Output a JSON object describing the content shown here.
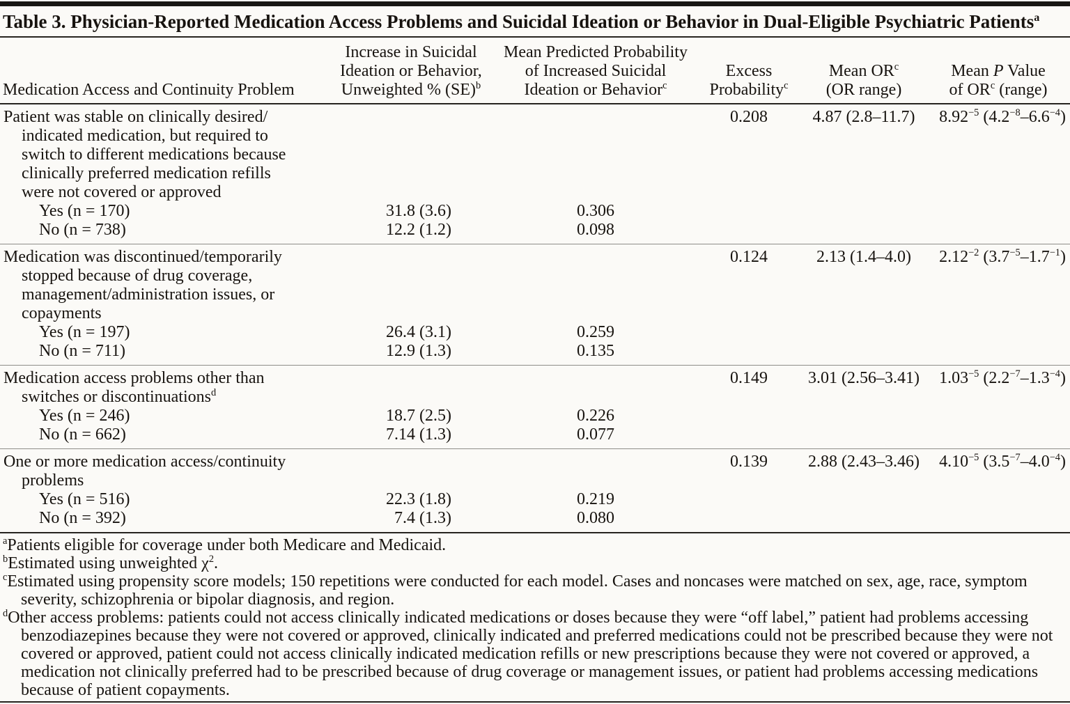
{
  "colors": {
    "background": "#fbfaf7",
    "text": "#17130f",
    "rule_heavy": "#181714",
    "rule_medium": "#26231f",
    "rule_separator": "#8e8c88"
  },
  "document": {
    "title": {
      "text": "Table 3. Physician-Reported Medication Access Problems and Suicidal Ideation or Behavior in Dual-Eligible Psychiatric Patients",
      "sup": "a"
    },
    "header": {
      "col1_parts": [
        {
          "t": "Medication Access and Continuity Problem"
        }
      ],
      "col2_parts": [
        {
          "t": "Increase in Suicidal"
        },
        {
          "br": true
        },
        {
          "t": "Ideation or Behavior,"
        },
        {
          "br": true
        },
        {
          "t": "Unweighted % (SE)"
        },
        {
          "sup": "b"
        }
      ],
      "col3_parts": [
        {
          "t": "Mean Predicted Probability"
        },
        {
          "br": true
        },
        {
          "t": "of Increased Suicidal"
        },
        {
          "br": true
        },
        {
          "t": "Ideation or Behavior"
        },
        {
          "sup": "c"
        }
      ],
      "col4_parts": [
        {
          "t": "Excess"
        },
        {
          "br": true
        },
        {
          "t": "Probability"
        },
        {
          "sup": "c"
        }
      ],
      "col5_parts": [
        {
          "t": "Mean OR"
        },
        {
          "sup": "c"
        },
        {
          "br": true
        },
        {
          "t": "(OR range)"
        }
      ],
      "col6_parts": [
        {
          "t": "Mean "
        },
        {
          "i": "P"
        },
        {
          "t": " Value"
        },
        {
          "br": true
        },
        {
          "t": "of OR"
        },
        {
          "sup": "c"
        },
        {
          "t": " (range)"
        }
      ]
    },
    "groups": [
      {
        "label_parts": [
          {
            "t": "Patient was stable on clinically desired/"
          },
          {
            "br": true
          },
          {
            "t": "indicated medication, but required to"
          },
          {
            "br": true
          },
          {
            "t": "switch to different medications because"
          },
          {
            "br": true
          },
          {
            "t": "clinically preferred medication refills"
          },
          {
            "br": true
          },
          {
            "t": "were not covered or approved"
          }
        ],
        "excess_probability": "0.208",
        "mean_or": "4.87 (2.8–11.7)",
        "mean_p_parts": [
          {
            "t": "8.92"
          },
          {
            "sup": "−5"
          },
          {
            "t": " (4.2"
          },
          {
            "sup": "−8"
          },
          {
            "t": "–6.6"
          },
          {
            "sup": "−4"
          },
          {
            "t": ")"
          }
        ],
        "rows": [
          {
            "label": "Yes (n = 170)",
            "increase_pct_se": "31.8 (3.6)",
            "mean_predicted_probability": "0.306"
          },
          {
            "label": "No (n = 738)",
            "increase_pct_se": "12.2 (1.2)",
            "mean_predicted_probability": "0.098"
          }
        ]
      },
      {
        "label_parts": [
          {
            "t": "Medication was discontinued/temporarily"
          },
          {
            "br": true
          },
          {
            "t": "stopped because of drug coverage,"
          },
          {
            "br": true
          },
          {
            "t": "management/administration issues, or"
          },
          {
            "br": true
          },
          {
            "t": "copayments"
          }
        ],
        "excess_probability": "0.124",
        "mean_or": "2.13 (1.4–4.0)",
        "mean_p_parts": [
          {
            "t": "2.12"
          },
          {
            "sup": "−2"
          },
          {
            "t": " (3.7"
          },
          {
            "sup": "−5"
          },
          {
            "t": "–1.7"
          },
          {
            "sup": "−1"
          },
          {
            "t": ")"
          }
        ],
        "rows": [
          {
            "label": "Yes (n = 197)",
            "increase_pct_se": "26.4 (3.1)",
            "mean_predicted_probability": "0.259"
          },
          {
            "label": "No (n = 711)",
            "increase_pct_se": "12.9 (1.3)",
            "mean_predicted_probability": "0.135"
          }
        ]
      },
      {
        "label_parts": [
          {
            "t": "Medication access problems other than"
          },
          {
            "br": true
          },
          {
            "t": "switches or discontinuations"
          },
          {
            "sup": "d"
          }
        ],
        "excess_probability": "0.149",
        "mean_or": "3.01 (2.56–3.41)",
        "mean_p_parts": [
          {
            "t": "1.03"
          },
          {
            "sup": "−5"
          },
          {
            "t": " (2.2"
          },
          {
            "sup": "−7"
          },
          {
            "t": "–1.3"
          },
          {
            "sup": "−4"
          },
          {
            "t": ")"
          }
        ],
        "rows": [
          {
            "label": "Yes (n = 246)",
            "increase_pct_se": "18.7 (2.5)",
            "mean_predicted_probability": "0.226"
          },
          {
            "label": "No (n = 662)",
            "increase_pct_se": "7.14 (1.3)",
            "mean_predicted_probability": "0.077"
          }
        ]
      },
      {
        "label_parts": [
          {
            "t": "One or more medication access/continuity"
          },
          {
            "br": true
          },
          {
            "t": "problems"
          }
        ],
        "excess_probability": "0.139",
        "mean_or": "2.88 (2.43–3.46)",
        "mean_p_parts": [
          {
            "t": "4.10"
          },
          {
            "sup": "−5"
          },
          {
            "t": " (3.5"
          },
          {
            "sup": "−7"
          },
          {
            "t": "–4.0"
          },
          {
            "sup": "−4"
          },
          {
            "t": ")"
          }
        ],
        "rows": [
          {
            "label": "Yes (n = 516)",
            "increase_pct_se": "22.3 (1.8)",
            "mean_predicted_probability": "0.219"
          },
          {
            "label": "No (n = 392)",
            "increase_pct_se": "7.4 (1.3)",
            "mean_predicted_probability": "0.080"
          }
        ]
      }
    ],
    "footnotes": [
      {
        "marker": "a",
        "text_parts": [
          {
            "t": "Patients eligible for coverage under both Medicare and Medicaid."
          }
        ]
      },
      {
        "marker": "b",
        "text_parts": [
          {
            "t": "Estimated using unweighted χ"
          },
          {
            "sup": "2"
          },
          {
            "t": "."
          }
        ]
      },
      {
        "marker": "c",
        "text_parts": [
          {
            "t": "Estimated using propensity score models; 150 repetitions were conducted for each model. Cases and noncases were matched on sex, age, race, symptom severity, schizophrenia or bipolar diagnosis, and region."
          }
        ]
      },
      {
        "marker": "d",
        "text_parts": [
          {
            "t": "Other access problems: patients could not access clinically indicated medications or doses because they were “off label,” patient had problems accessing benzodiazepines because they were not covered or approved, clinically indicated and preferred medications could not be prescribed because they were not covered or approved, patient could not access clinically indicated medication refills or new prescriptions because they were not covered or approved, a medication not clinically preferred had to be prescribed because of drug coverage or management issues, or patient had problems accessing medications because of patient copayments."
          }
        ]
      }
    ]
  }
}
